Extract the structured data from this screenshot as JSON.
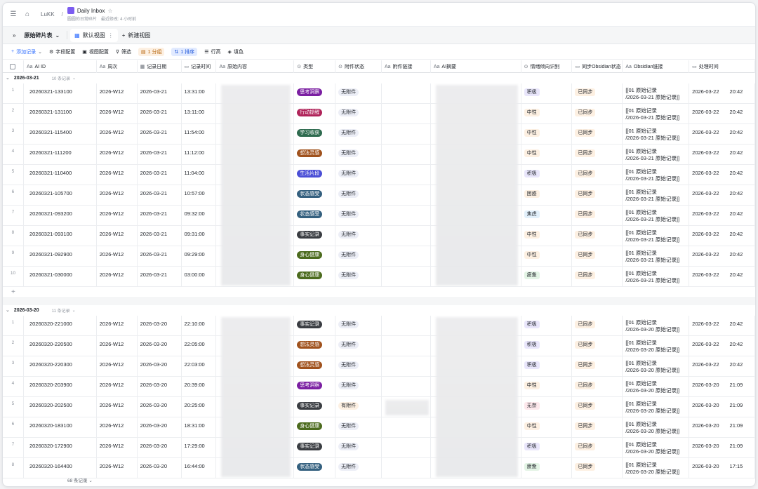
{
  "topbar": {
    "workspace": "LuKK",
    "doc_title": "Daily Inbox",
    "doc_sub1": "圆圆的日常碎片",
    "doc_sub2": "最近修改: 4 小时前"
  },
  "viewbar": {
    "table_name": "原始碎片表",
    "default_view": "默认视图",
    "new_view": "新建视图"
  },
  "toolbar": {
    "add_record": "添加记录",
    "field_config": "字段配置",
    "view_config": "视图配置",
    "filter": "筛选",
    "group": "1 分组",
    "sort": "1 排序",
    "row_height": "行高",
    "fill": "填色"
  },
  "columns": [
    "AI ID",
    "周次",
    "记录日期",
    "记录时间",
    "原始内容",
    "类型",
    "附件状态",
    "附件链接",
    "AI摘要",
    "情绪倾向识别",
    "同步Obsidian状态",
    "Obsidian链接",
    "处理时间"
  ],
  "groups": [
    {
      "label": "2026-03-21",
      "count": "10 条记录",
      "rows": [
        {
          "n": "1",
          "id": "20260321-133100",
          "week": "2026-W12",
          "date": "2026-03-21",
          "time": "13:31:00",
          "type": "思考洞察",
          "att": "无附件",
          "emo": "积极",
          "sync": "已同步",
          "l1": "[[01 原始记录",
          "l2": "/2026-03-21 原始记录]]",
          "pdate": "2026-03-22",
          "ptime": "20:42"
        },
        {
          "n": "2",
          "id": "20260321-131100",
          "week": "2026-W12",
          "date": "2026-03-21",
          "time": "13:11:00",
          "type": "行动提醒",
          "att": "无附件",
          "emo": "中性",
          "sync": "已同步",
          "l1": "[[01 原始记录",
          "l2": "/2026-03-21 原始记录]]",
          "pdate": "2026-03-22",
          "ptime": "20:42"
        },
        {
          "n": "3",
          "id": "20260321-115400",
          "week": "2026-W12",
          "date": "2026-03-21",
          "time": "11:54:00",
          "type": "学习收获",
          "att": "无附件",
          "emo": "中性",
          "sync": "已同步",
          "l1": "[[01 原始记录",
          "l2": "/2026-03-21 原始记录]]",
          "pdate": "2026-03-22",
          "ptime": "20:42"
        },
        {
          "n": "4",
          "id": "20260321-111200",
          "week": "2026-W12",
          "date": "2026-03-21",
          "time": "11:12:00",
          "type": "想法灵感",
          "att": "无附件",
          "emo": "中性",
          "sync": "已同步",
          "l1": "[[01 原始记录",
          "l2": "/2026-03-21 原始记录]]",
          "pdate": "2026-03-22",
          "ptime": "20:42"
        },
        {
          "n": "5",
          "id": "20260321-110400",
          "week": "2026-W12",
          "date": "2026-03-21",
          "time": "11:04:00",
          "type": "生活片段",
          "att": "无附件",
          "emo": "积极",
          "sync": "已同步",
          "l1": "[[01 原始记录",
          "l2": "/2026-03-21 原始记录]]",
          "pdate": "2026-03-22",
          "ptime": "20:42"
        },
        {
          "n": "6",
          "id": "20260321-105700",
          "week": "2026-W12",
          "date": "2026-03-21",
          "time": "10:57:00",
          "type": "状态感受",
          "att": "无附件",
          "emo": "困惑",
          "sync": "已同步",
          "l1": "[[01 原始记录",
          "l2": "/2026-03-21 原始记录]]",
          "pdate": "2026-03-22",
          "ptime": "20:42"
        },
        {
          "n": "7",
          "id": "20260321-093200",
          "week": "2026-W12",
          "date": "2026-03-21",
          "time": "09:32:00",
          "type": "状态感受",
          "att": "无附件",
          "emo": "焦虑",
          "sync": "已同步",
          "l1": "[[01 原始记录",
          "l2": "/2026-03-21 原始记录]]",
          "pdate": "2026-03-22",
          "ptime": "20:42"
        },
        {
          "n": "8",
          "id": "20260321-093100",
          "week": "2026-W12",
          "date": "2026-03-21",
          "time": "09:31:00",
          "type": "事实记录",
          "att": "无附件",
          "emo": "中性",
          "sync": "已同步",
          "l1": "[[01 原始记录",
          "l2": "/2026-03-21 原始记录]]",
          "pdate": "2026-03-22",
          "ptime": "20:42"
        },
        {
          "n": "9",
          "id": "20260321-092900",
          "week": "2026-W12",
          "date": "2026-03-21",
          "time": "09:29:00",
          "type": "身心健康",
          "att": "无附件",
          "emo": "中性",
          "sync": "已同步",
          "l1": "[[01 原始记录",
          "l2": "/2026-03-21 原始记录]]",
          "pdate": "2026-03-22",
          "ptime": "20:42"
        },
        {
          "n": "10",
          "id": "20260321-030000",
          "week": "2026-W12",
          "date": "2026-03-21",
          "time": "03:00:00",
          "type": "身心健康",
          "att": "无附件",
          "emo": "疲惫",
          "sync": "已同步",
          "l1": "[[01 原始记录",
          "l2": "/2026-03-21 原始记录]]",
          "pdate": "2026-03-22",
          "ptime": "20:42"
        }
      ]
    },
    {
      "label": "2026-03-20",
      "count": "11 条记录",
      "rows": [
        {
          "n": "1",
          "id": "20260320-221000",
          "week": "2026-W12",
          "date": "2026-03-20",
          "time": "22:10:00",
          "type": "事实记录",
          "att": "无附件",
          "emo": "积极",
          "sync": "已同步",
          "l1": "[[01 原始记录",
          "l2": "/2026-03-20 原始记录]]",
          "pdate": "2026-03-22",
          "ptime": "20:42"
        },
        {
          "n": "2",
          "id": "20260320-220500",
          "week": "2026-W12",
          "date": "2026-03-20",
          "time": "22:05:00",
          "type": "想法灵感",
          "att": "无附件",
          "emo": "积极",
          "sync": "已同步",
          "l1": "[[01 原始记录",
          "l2": "/2026-03-20 原始记录]]",
          "pdate": "2026-03-22",
          "ptime": "20:42"
        },
        {
          "n": "3",
          "id": "20260320-220300",
          "week": "2026-W12",
          "date": "2026-03-20",
          "time": "22:03:00",
          "type": "想法灵感",
          "att": "无附件",
          "emo": "积极",
          "sync": "已同步",
          "l1": "[[01 原始记录",
          "l2": "/2026-03-20 原始记录]]",
          "pdate": "2026-03-22",
          "ptime": "20:42"
        },
        {
          "n": "4",
          "id": "20260320-203900",
          "week": "2026-W12",
          "date": "2026-03-20",
          "time": "20:39:00",
          "type": "思考洞察",
          "att": "无附件",
          "emo": "中性",
          "sync": "已同步",
          "l1": "[[01 原始记录",
          "l2": "/2026-03-20 原始记录]]",
          "pdate": "2026-03-20",
          "ptime": "21:09"
        },
        {
          "n": "5",
          "id": "20260320-202500",
          "week": "2026-W12",
          "date": "2026-03-20",
          "time": "20:25:00",
          "type": "事实记录",
          "att": "有附件",
          "emo": "无奈",
          "sync": "已同步",
          "l1": "[[01 原始记录",
          "l2": "/2026-03-20 原始记录]]",
          "pdate": "2026-03-20",
          "ptime": "21:09"
        },
        {
          "n": "6",
          "id": "20260320-183100",
          "week": "2026-W12",
          "date": "2026-03-20",
          "time": "18:31:00",
          "type": "身心健康",
          "att": "无附件",
          "emo": "中性",
          "sync": "已同步",
          "l1": "[[01 原始记录",
          "l2": "/2026-03-20 原始记录]]",
          "pdate": "2026-03-20",
          "ptime": "21:09"
        },
        {
          "n": "7",
          "id": "20260320-172900",
          "week": "2026-W12",
          "date": "2026-03-20",
          "time": "17:29:00",
          "type": "事实记录",
          "att": "无附件",
          "emo": "积极",
          "sync": "已同步",
          "l1": "[[01 原始记录",
          "l2": "/2026-03-20 原始记录]]",
          "pdate": "2026-03-20",
          "ptime": "21:09"
        },
        {
          "n": "8",
          "id": "20260320-164400",
          "week": "2026-W12",
          "date": "2026-03-20",
          "time": "16:44:00",
          "type": "状态感受",
          "att": "无附件",
          "emo": "疲惫",
          "sync": "已同步",
          "l1": "[[01 原始记录",
          "l2": "/2026-03-20 原始记录]]",
          "pdate": "2026-03-20",
          "ptime": "17:15"
        }
      ]
    }
  ],
  "footer_count": "68 条记录",
  "colors": {
    "思考洞察": "#7b1fa2",
    "行动提醒": "#b0245a",
    "学习收获": "#2e6b4f",
    "想法灵感": "#a0521d",
    "生活片段": "#4b4fd6",
    "状态感受": "#34607f",
    "事实记录": "#3a3d42",
    "身心健康": "#4c6b1e",
    "积极": "#e9e6fb",
    "中性": "#fdf0e2",
    "困惑": "#fdf0e2",
    "焦虑": "#e2f0fb",
    "疲惫": "#e3f4e5",
    "无奈": "#fde8ec"
  }
}
